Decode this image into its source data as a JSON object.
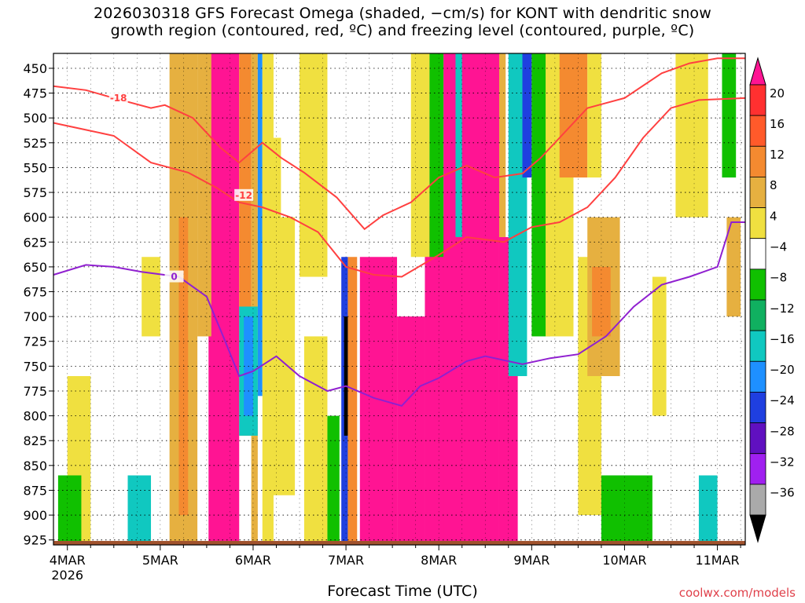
{
  "chart_data": {
    "type": "heatmap",
    "title_line1": "2026030318 GFS Forecast Omega (shaded, −cm/s) for KONT with dendritic snow",
    "title_line2": "growth region (contoured, red, ºC) and freezing level (contoured, purple, ºC)",
    "xlabel": "Forecast Time (UTC)",
    "credit": "coolwx.com/models",
    "y_axis": {
      "unit": "hPa",
      "range": [
        435,
        930
      ],
      "ticks": [
        450,
        475,
        500,
        525,
        550,
        575,
        600,
        625,
        650,
        675,
        700,
        725,
        750,
        775,
        800,
        825,
        850,
        875,
        900,
        925
      ]
    },
    "x_axis": {
      "unit": "day",
      "range": [
        3.85,
        11.3
      ],
      "ticks": [
        {
          "day": 4,
          "label": "4MAR",
          "sublabel": "2026"
        },
        {
          "day": 5,
          "label": "5MAR",
          "sublabel": ""
        },
        {
          "day": 6,
          "label": "6MAR",
          "sublabel": ""
        },
        {
          "day": 7,
          "label": "7MAR",
          "sublabel": ""
        },
        {
          "day": 8,
          "label": "8MAR",
          "sublabel": ""
        },
        {
          "day": 9,
          "label": "9MAR",
          "sublabel": ""
        },
        {
          "day": 10,
          "label": "10MAR",
          "sublabel": ""
        },
        {
          "day": 11,
          "label": "11MAR",
          "sublabel": ""
        }
      ]
    },
    "colorbar": {
      "labels": [
        20,
        16,
        12,
        8,
        4,
        -4,
        -8,
        -12,
        -16,
        -20,
        -24,
        -28,
        -32,
        -36
      ],
      "colors": [
        "#ff1493",
        "#ff3030",
        "#ff5a2a",
        "#f48a30",
        "#e6b040",
        "#f0e040",
        "#ffffff",
        "#10c000",
        "#10b060",
        "#10c8c0",
        "#1e90ff",
        "#1f3fe0",
        "#6010c0",
        "#a020f0",
        "#aaaaaa",
        "#000000"
      ]
    },
    "shaded_regions": [
      {
        "x": [
          5.52,
          5.85
        ],
        "p": [
          435,
          930
        ],
        "value": 20
      },
      {
        "x": [
          5.4,
          5.55
        ],
        "p": [
          435,
          720
        ],
        "value": 8
      },
      {
        "x": [
          5.85,
          5.98
        ],
        "p": [
          435,
          820
        ],
        "value": 12
      },
      {
        "x": [
          5.98,
          6.05
        ],
        "p": [
          435,
          930
        ],
        "value": 8
      },
      {
        "x": [
          6.05,
          6.1
        ],
        "p": [
          435,
          780
        ],
        "value": -16
      },
      {
        "x": [
          6.1,
          6.22
        ],
        "p": [
          435,
          930
        ],
        "value": 4
      },
      {
        "x": [
          5.1,
          5.4
        ],
        "p": [
          435,
          930
        ],
        "value": 8
      },
      {
        "x": [
          5.2,
          5.3
        ],
        "p": [
          600,
          900
        ],
        "value": 12
      },
      {
        "x": [
          5.85,
          6.05
        ],
        "p": [
          690,
          820
        ],
        "value": -12
      },
      {
        "x": [
          5.9,
          6.0
        ],
        "p": [
          700,
          800
        ],
        "value": -16
      },
      {
        "x": [
          6.1,
          6.3
        ],
        "p": [
          520,
          620
        ],
        "value": 4
      },
      {
        "x": [
          6.2,
          6.45
        ],
        "p": [
          600,
          880
        ],
        "value": 4
      },
      {
        "x": [
          6.5,
          6.8
        ],
        "p": [
          435,
          660
        ],
        "value": 4
      },
      {
        "x": [
          6.55,
          6.8
        ],
        "p": [
          720,
          930
        ],
        "value": 4
      },
      {
        "x": [
          6.8,
          6.93
        ],
        "p": [
          800,
          930
        ],
        "value": -8
      },
      {
        "x": [
          6.95,
          7.02
        ],
        "p": [
          640,
          930
        ],
        "value": -20
      },
      {
        "x": [
          6.98,
          7.02
        ],
        "p": [
          700,
          820
        ],
        "value": -36
      },
      {
        "x": [
          7.02,
          7.12
        ],
        "p": [
          640,
          930
        ],
        "value": 12
      },
      {
        "x": [
          7.15,
          7.55
        ],
        "p": [
          640,
          930
        ],
        "value": 20
      },
      {
        "x": [
          7.55,
          7.85
        ],
        "p": [
          700,
          930
        ],
        "value": 20
      },
      {
        "x": [
          7.85,
          8.35
        ],
        "p": [
          600,
          930
        ],
        "value": 20
      },
      {
        "x": [
          8.05,
          8.65
        ],
        "p": [
          435,
          930
        ],
        "value": 20
      },
      {
        "x": [
          8.65,
          8.85
        ],
        "p": [
          620,
          930
        ],
        "value": 20
      },
      {
        "x": [
          7.7,
          7.9
        ],
        "p": [
          435,
          640
        ],
        "value": 4
      },
      {
        "x": [
          7.9,
          8.05
        ],
        "p": [
          435,
          640
        ],
        "value": -8
      },
      {
        "x": [
          8.18,
          8.25
        ],
        "p": [
          435,
          620
        ],
        "value": -12
      },
      {
        "x": [
          8.65,
          8.72
        ],
        "p": [
          435,
          620
        ],
        "value": 8
      },
      {
        "x": [
          8.75,
          8.95
        ],
        "p": [
          435,
          760
        ],
        "value": -12
      },
      {
        "x": [
          8.9,
          9.0
        ],
        "p": [
          435,
          560
        ],
        "value": -20
      },
      {
        "x": [
          9.0,
          9.2
        ],
        "p": [
          435,
          720
        ],
        "value": -8
      },
      {
        "x": [
          9.15,
          9.45
        ],
        "p": [
          435,
          720
        ],
        "value": 4
      },
      {
        "x": [
          9.3,
          9.6
        ],
        "p": [
          435,
          560
        ],
        "value": 12
      },
      {
        "x": [
          9.6,
          9.75
        ],
        "p": [
          435,
          560
        ],
        "value": 4
      },
      {
        "x": [
          9.5,
          9.75
        ],
        "p": [
          640,
          900
        ],
        "value": 4
      },
      {
        "x": [
          9.6,
          9.95
        ],
        "p": [
          600,
          760
        ],
        "value": 8
      },
      {
        "x": [
          9.65,
          9.85
        ],
        "p": [
          650,
          720
        ],
        "value": 12
      },
      {
        "x": [
          9.8,
          10.1
        ],
        "p": [
          860,
          930
        ],
        "value": -16
      },
      {
        "x": [
          9.75,
          10.3
        ],
        "p": [
          860,
          930
        ],
        "value": -8
      },
      {
        "x": [
          10.3,
          10.45
        ],
        "p": [
          660,
          800
        ],
        "value": 4
      },
      {
        "x": [
          10.55,
          10.9
        ],
        "p": [
          435,
          600
        ],
        "value": 4
      },
      {
        "x": [
          10.8,
          11.0
        ],
        "p": [
          860,
          930
        ],
        "value": -12
      },
      {
        "x": [
          11.05,
          11.2
        ],
        "p": [
          435,
          560
        ],
        "value": -8
      },
      {
        "x": [
          11.1,
          11.25
        ],
        "p": [
          600,
          700
        ],
        "value": 8
      },
      {
        "x": [
          4.0,
          4.25
        ],
        "p": [
          760,
          930
        ],
        "value": 4
      },
      {
        "x": [
          3.9,
          4.15
        ],
        "p": [
          860,
          930
        ],
        "value": -8
      },
      {
        "x": [
          4.65,
          4.9
        ],
        "p": [
          860,
          930
        ],
        "value": -12
      },
      {
        "x": [
          4.8,
          5.0
        ],
        "p": [
          640,
          720
        ],
        "value": 4
      }
    ],
    "contours": [
      {
        "label": "-18",
        "color": "#ff4040",
        "points": [
          [
            3.85,
            468
          ],
          [
            4.2,
            472
          ],
          [
            4.5,
            480
          ],
          [
            4.9,
            490
          ],
          [
            5.05,
            487
          ],
          [
            5.35,
            500
          ],
          [
            5.65,
            530
          ],
          [
            5.85,
            545
          ],
          [
            6.1,
            525
          ],
          [
            6.3,
            540
          ],
          [
            6.55,
            555
          ],
          [
            6.9,
            580
          ],
          [
            7.2,
            612
          ],
          [
            7.4,
            598
          ],
          [
            7.7,
            585
          ],
          [
            8.0,
            560
          ],
          [
            8.3,
            548
          ],
          [
            8.6,
            560
          ],
          [
            8.9,
            556
          ],
          [
            9.1,
            540
          ],
          [
            9.3,
            520
          ],
          [
            9.6,
            490
          ],
          [
            10.0,
            480
          ],
          [
            10.4,
            455
          ],
          [
            10.7,
            445
          ],
          [
            11.0,
            440
          ],
          [
            11.3,
            440
          ]
        ],
        "label_at": [
          4.55,
          480
        ]
      },
      {
        "label": "-12",
        "color": "#ff4040",
        "points": [
          [
            3.85,
            505
          ],
          [
            4.2,
            512
          ],
          [
            4.5,
            518
          ],
          [
            4.9,
            545
          ],
          [
            5.3,
            555
          ],
          [
            5.6,
            570
          ],
          [
            5.85,
            585
          ],
          [
            6.1,
            590
          ],
          [
            6.4,
            600
          ],
          [
            6.7,
            615
          ],
          [
            7.0,
            650
          ],
          [
            7.3,
            658
          ],
          [
            7.6,
            660
          ],
          [
            8.0,
            638
          ],
          [
            8.3,
            620
          ],
          [
            8.7,
            625
          ],
          [
            9.0,
            610
          ],
          [
            9.3,
            605
          ],
          [
            9.6,
            590
          ],
          [
            9.9,
            560
          ],
          [
            10.2,
            520
          ],
          [
            10.5,
            490
          ],
          [
            10.8,
            482
          ],
          [
            11.3,
            480
          ]
        ],
        "label_at": [
          5.9,
          578
        ]
      },
      {
        "label": "0",
        "color": "#9020d0",
        "points": [
          [
            3.85,
            658
          ],
          [
            4.2,
            648
          ],
          [
            4.5,
            650
          ],
          [
            4.8,
            655
          ],
          [
            5.2,
            660
          ],
          [
            5.5,
            680
          ],
          [
            5.7,
            725
          ],
          [
            5.85,
            760
          ],
          [
            6.0,
            755
          ],
          [
            6.25,
            740
          ],
          [
            6.5,
            760
          ],
          [
            6.8,
            775
          ],
          [
            7.0,
            770
          ],
          [
            7.3,
            782
          ],
          [
            7.6,
            790
          ],
          [
            7.8,
            770
          ],
          [
            8.0,
            762
          ],
          [
            8.3,
            745
          ],
          [
            8.5,
            740
          ],
          [
            8.9,
            748
          ],
          [
            9.2,
            742
          ],
          [
            9.5,
            738
          ],
          [
            9.8,
            720
          ],
          [
            10.1,
            690
          ],
          [
            10.4,
            668
          ],
          [
            10.7,
            660
          ],
          [
            11.0,
            650
          ],
          [
            11.15,
            605
          ],
          [
            11.3,
            605
          ]
        ],
        "label_at": [
          5.15,
          660
        ]
      }
    ]
  }
}
